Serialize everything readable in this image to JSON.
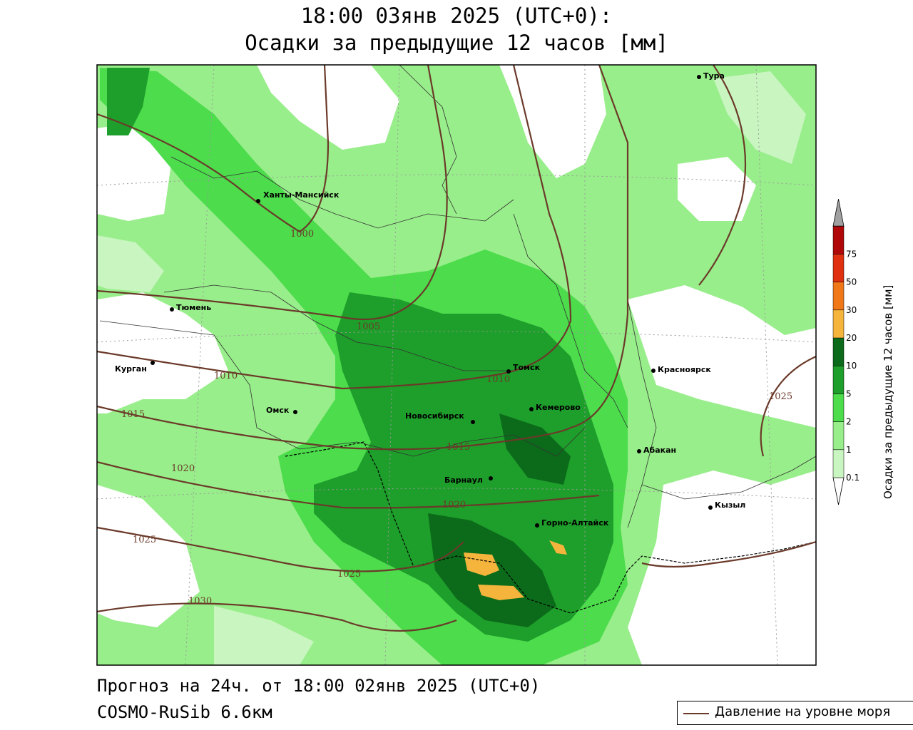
{
  "header": {
    "line1": "18:00 03янв 2025 (UTC+0):",
    "line2": "Осадки за предыдущие 12 часов [мм]"
  },
  "footer": {
    "forecast": "Прогноз на 24ч. от 18:00 02янв 2025 (UTC+0)",
    "model": "COSMO-RuSib 6.6км"
  },
  "legend": {
    "pressure_label": "Давление на уровне моря",
    "pressure_color": "#6b3a2a"
  },
  "colorbar": {
    "title": "Осадки за предыдущие 12 часов [мм]",
    "levels": [
      "0.1",
      "1",
      "2",
      "5",
      "10",
      "20",
      "30",
      "50",
      "75"
    ],
    "colors": [
      "#c8f5c0",
      "#98ee8a",
      "#4cdc4c",
      "#1e9e2a",
      "#0b6b1a",
      "#f5b43c",
      "#f07818",
      "#e03010",
      "#b00808",
      "#a0a0a0"
    ]
  },
  "cities": [
    {
      "name": "Тура"
    },
    {
      "name": "Ханты-Мансийск"
    },
    {
      "name": "Тюмень"
    },
    {
      "name": "Курган"
    },
    {
      "name": "Омск"
    },
    {
      "name": "Томск"
    },
    {
      "name": "Красноярск"
    },
    {
      "name": "Кемерово"
    },
    {
      "name": "Новосибирск"
    },
    {
      "name": "Абакан"
    },
    {
      "name": "Барнаул"
    },
    {
      "name": "Горно-Алтайск"
    },
    {
      "name": "Кызыл"
    }
  ],
  "isobars": [
    {
      "label": "1000"
    },
    {
      "label": "1005"
    },
    {
      "label": "1010"
    },
    {
      "label": "1010"
    },
    {
      "label": "1015"
    },
    {
      "label": "1015"
    },
    {
      "label": "1020"
    },
    {
      "label": "1020"
    },
    {
      "label": "1025"
    },
    {
      "label": "1025"
    },
    {
      "label": "1025"
    },
    {
      "label": "1030"
    }
  ]
}
